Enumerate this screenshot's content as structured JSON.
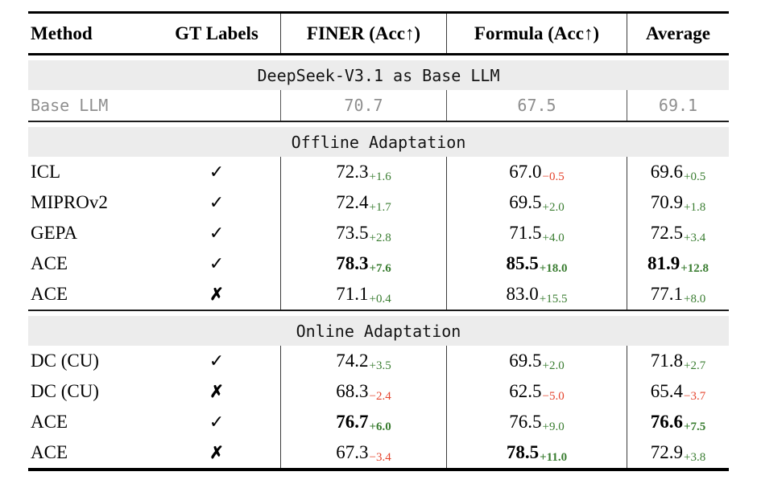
{
  "header": {
    "columns": [
      "Method",
      "GT Labels",
      "FINER (Acc↑)",
      "Formula (Acc↑)",
      "Average"
    ]
  },
  "colors": {
    "positive_delta": "#3a7d31",
    "negative_delta": "#e5442d",
    "muted_row_text": "#8f8f8f",
    "banner_background": "#ececec"
  },
  "sections": [
    {
      "title": "DeepSeek-V3.1 as Base LLM",
      "rows": [
        {
          "method": "Base LLM",
          "gt": "",
          "finer": {
            "v": "70.7",
            "d": ""
          },
          "formula": {
            "v": "67.5",
            "d": ""
          },
          "avg": {
            "v": "69.1",
            "d": ""
          }
        }
      ]
    },
    {
      "title": "Offline Adaptation",
      "rows": [
        {
          "method": "ICL",
          "gt": "✓",
          "finer": {
            "v": "72.3",
            "d": "+1.6"
          },
          "formula": {
            "v": "67.0",
            "d": "−0.5"
          },
          "avg": {
            "v": "69.6",
            "d": "+0.5"
          }
        },
        {
          "method": "MIPROv2",
          "gt": "✓",
          "finer": {
            "v": "72.4",
            "d": "+1.7"
          },
          "formula": {
            "v": "69.5",
            "d": "+2.0"
          },
          "avg": {
            "v": "70.9",
            "d": "+1.8"
          }
        },
        {
          "method": "GEPA",
          "gt": "✓",
          "finer": {
            "v": "73.5",
            "d": "+2.8"
          },
          "formula": {
            "v": "71.5",
            "d": "+4.0"
          },
          "avg": {
            "v": "72.5",
            "d": "+3.4"
          }
        },
        {
          "method": "ACE",
          "gt": "✓",
          "finer": {
            "v": "78.3",
            "d": "+7.6"
          },
          "formula": {
            "v": "85.5",
            "d": "+18.0"
          },
          "avg": {
            "v": "81.9",
            "d": "+12.8"
          }
        },
        {
          "method": "ACE",
          "gt": "✗",
          "finer": {
            "v": "71.1",
            "d": "+0.4"
          },
          "formula": {
            "v": "83.0",
            "d": "+15.5"
          },
          "avg": {
            "v": "77.1",
            "d": "+8.0"
          }
        }
      ]
    },
    {
      "title": "Online Adaptation",
      "rows": [
        {
          "method": "DC (CU)",
          "gt": "✓",
          "finer": {
            "v": "74.2",
            "d": "+3.5"
          },
          "formula": {
            "v": "69.5",
            "d": "+2.0"
          },
          "avg": {
            "v": "71.8",
            "d": "+2.7"
          }
        },
        {
          "method": "DC (CU)",
          "gt": "✗",
          "finer": {
            "v": "68.3",
            "d": "−2.4"
          },
          "formula": {
            "v": "62.5",
            "d": "−5.0"
          },
          "avg": {
            "v": "65.4",
            "d": "−3.7"
          }
        },
        {
          "method": "ACE",
          "gt": "✓",
          "finer": {
            "v": "76.7",
            "d": "+6.0"
          },
          "formula": {
            "v": "76.5",
            "d": "+9.0"
          },
          "avg": {
            "v": "76.6",
            "d": "+7.5"
          }
        },
        {
          "method": "ACE",
          "gt": "✗",
          "finer": {
            "v": "67.3",
            "d": "−3.4"
          },
          "formula": {
            "v": "78.5",
            "d": "+11.0"
          },
          "avg": {
            "v": "72.9",
            "d": "+3.8"
          }
        }
      ]
    }
  ]
}
